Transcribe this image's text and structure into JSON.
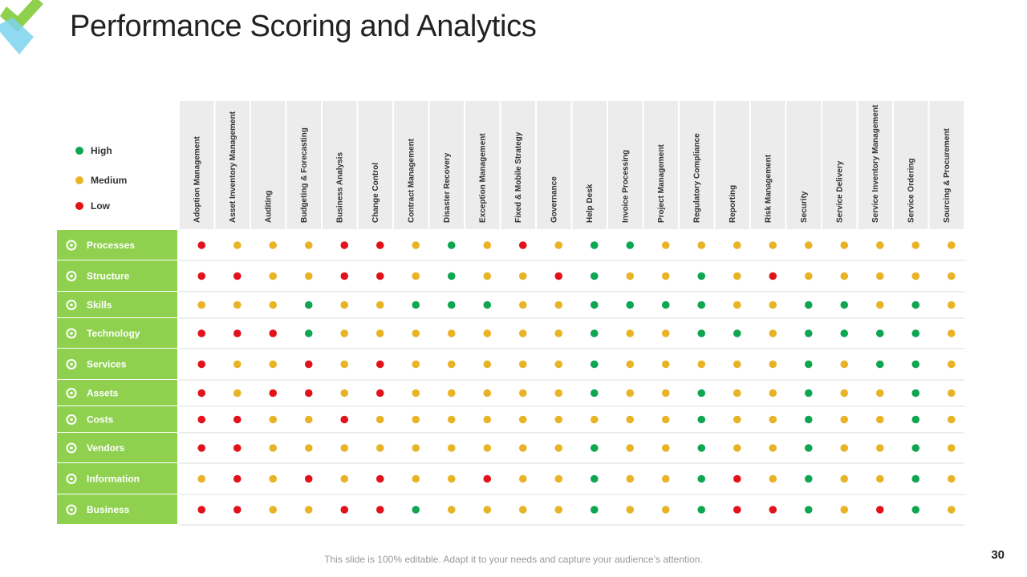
{
  "slide": {
    "title": "Performance Scoring and Analytics",
    "footer": "This slide is 100% editable. Adapt it to your needs and capture your audience’s attention.",
    "page_number": "30"
  },
  "colors": {
    "high": "#0fa651",
    "medium": "#e8b325",
    "low": "#e2121b",
    "row_header": "#8fd14f",
    "column_header": "#ececec",
    "logo_green": "#8fd14f",
    "logo_blue": "#7cd4ef"
  },
  "legend": [
    {
      "key": "H",
      "label": "High",
      "color": "#0fa651"
    },
    {
      "key": "M",
      "label": "Medium",
      "color": "#e8b325"
    },
    {
      "key": "L",
      "label": "Low",
      "color": "#e2121b"
    }
  ],
  "chart_data": {
    "type": "heatmap",
    "title": "Performance Scoring and Analytics",
    "columns": [
      "Adoption Management",
      "Asset Inventory Management",
      "Auditing",
      "Budgeting & Forecasting",
      "Business Analysis",
      "Change Control",
      "Contract Management",
      "Disaster Recovery",
      "Exception Management",
      "Fixed & Mobile Strategy",
      "Governance",
      "Help Desk",
      "Invoice Processing",
      "Project Management",
      "Regulatory Compliance",
      "Reporting",
      "Risk Management",
      "Security",
      "Service Delivery",
      "Service Inventory Management",
      "Service Ordering",
      "Sourcing & Procurement"
    ],
    "rows": [
      {
        "label": "Processes",
        "icon": "gear-icon",
        "values": [
          "L",
          "M",
          "M",
          "M",
          "L",
          "L",
          "M",
          "H",
          "M",
          "L",
          "M",
          "H",
          "H",
          "M",
          "M",
          "M",
          "M",
          "M",
          "M",
          "M",
          "M",
          "M"
        ]
      },
      {
        "label": "Structure",
        "icon": "org-chart-icon",
        "values": [
          "L",
          "L",
          "M",
          "M",
          "L",
          "L",
          "M",
          "H",
          "M",
          "M",
          "L",
          "H",
          "M",
          "M",
          "H",
          "M",
          "L",
          "M",
          "M",
          "M",
          "M",
          "M"
        ]
      },
      {
        "label": "Skills",
        "icon": "brain-head-icon",
        "values": [
          "M",
          "M",
          "M",
          "H",
          "M",
          "M",
          "H",
          "H",
          "H",
          "M",
          "M",
          "H",
          "H",
          "H",
          "H",
          "M",
          "M",
          "H",
          "H",
          "M",
          "H",
          "M"
        ]
      },
      {
        "label": "Technology",
        "icon": "gears-icon",
        "values": [
          "L",
          "L",
          "L",
          "H",
          "M",
          "M",
          "M",
          "M",
          "M",
          "M",
          "M",
          "H",
          "M",
          "M",
          "H",
          "H",
          "M",
          "H",
          "H",
          "H",
          "H",
          "M"
        ]
      },
      {
        "label": "Services",
        "icon": "hand-service-icon",
        "values": [
          "L",
          "M",
          "M",
          "L",
          "M",
          "L",
          "M",
          "M",
          "M",
          "M",
          "M",
          "H",
          "M",
          "M",
          "M",
          "M",
          "M",
          "H",
          "M",
          "H",
          "H",
          "M"
        ]
      },
      {
        "label": "Assets",
        "icon": "monitor-icon",
        "values": [
          "L",
          "M",
          "L",
          "L",
          "M",
          "L",
          "M",
          "M",
          "M",
          "M",
          "M",
          "H",
          "M",
          "M",
          "H",
          "M",
          "M",
          "H",
          "M",
          "M",
          "H",
          "M"
        ]
      },
      {
        "label": "Costs",
        "icon": "money-icon",
        "values": [
          "L",
          "L",
          "M",
          "M",
          "L",
          "M",
          "M",
          "M",
          "M",
          "M",
          "M",
          "M",
          "M",
          "M",
          "H",
          "M",
          "M",
          "H",
          "M",
          "M",
          "H",
          "M"
        ]
      },
      {
        "label": "Vendors",
        "icon": "people-icon",
        "values": [
          "L",
          "L",
          "M",
          "M",
          "M",
          "M",
          "M",
          "M",
          "M",
          "M",
          "M",
          "H",
          "M",
          "M",
          "H",
          "M",
          "M",
          "H",
          "M",
          "M",
          "H",
          "M"
        ]
      },
      {
        "label": "Information",
        "icon": "clipboard-icon",
        "values": [
          "M",
          "L",
          "M",
          "L",
          "M",
          "L",
          "M",
          "M",
          "L",
          "M",
          "M",
          "H",
          "M",
          "M",
          "H",
          "L",
          "M",
          "H",
          "M",
          "M",
          "H",
          "M"
        ]
      },
      {
        "label": "Business",
        "icon": "growth-chart-icon",
        "values": [
          "L",
          "L",
          "M",
          "M",
          "L",
          "L",
          "H",
          "M",
          "M",
          "M",
          "M",
          "H",
          "M",
          "M",
          "H",
          "L",
          "L",
          "H",
          "M",
          "L",
          "H",
          "M"
        ]
      }
    ]
  }
}
